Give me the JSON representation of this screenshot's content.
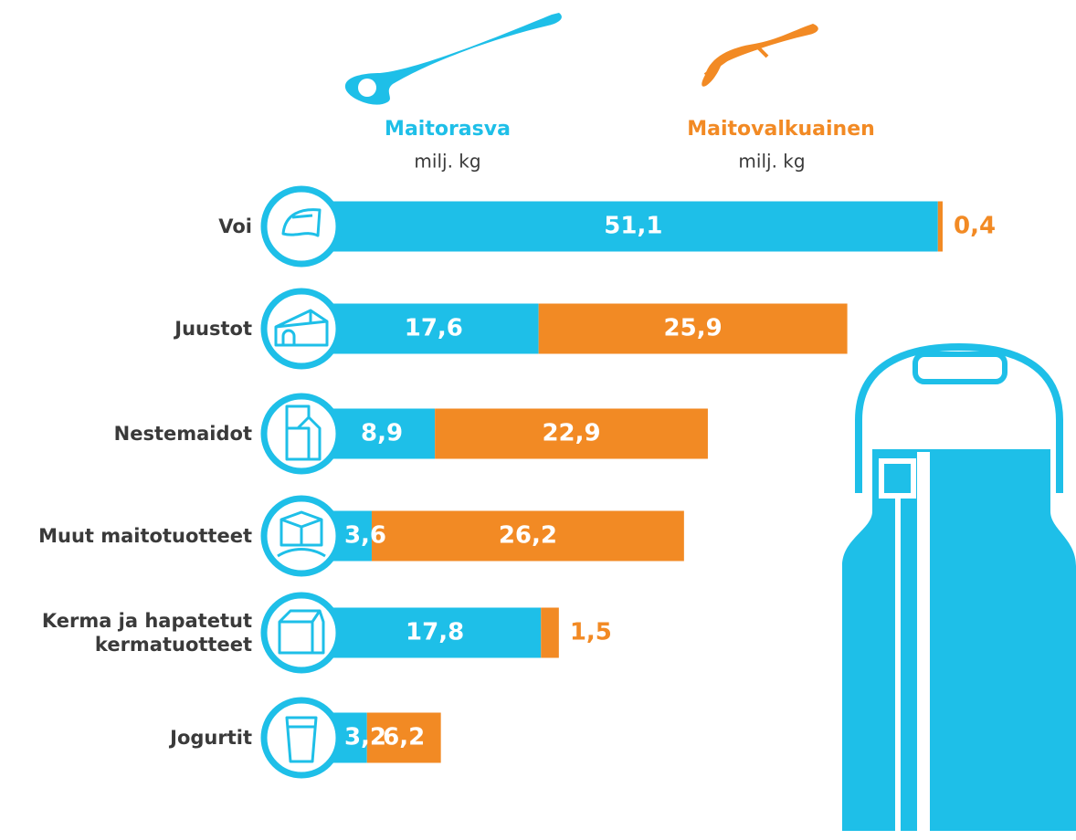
{
  "chart_data": {
    "type": "stacked-bar-horizontal",
    "unit": "milj. kg",
    "categories": [
      "Voi",
      "Juustot",
      "Nestemaidot",
      "Muut maitotuotteet",
      "Kerma ja hapatetut kermatuotteet",
      "Jogurtit"
    ],
    "series": [
      {
        "name": "Maitorasva",
        "color": "#1ebfe8",
        "values": [
          51.1,
          17.6,
          8.9,
          3.6,
          17.8,
          3.2
        ],
        "value_labels": [
          "51,1",
          "17,6",
          "8,9",
          "3,6",
          "17,8",
          "3,2"
        ]
      },
      {
        "name": "Maitovalkuainen",
        "color": "#f28a24",
        "values": [
          0.4,
          25.9,
          22.9,
          26.2,
          1.5,
          6.2
        ],
        "value_labels": [
          "0,4",
          "25,9",
          "22,9",
          "26,2",
          "1,5",
          "6,2"
        ]
      }
    ]
  }
}
